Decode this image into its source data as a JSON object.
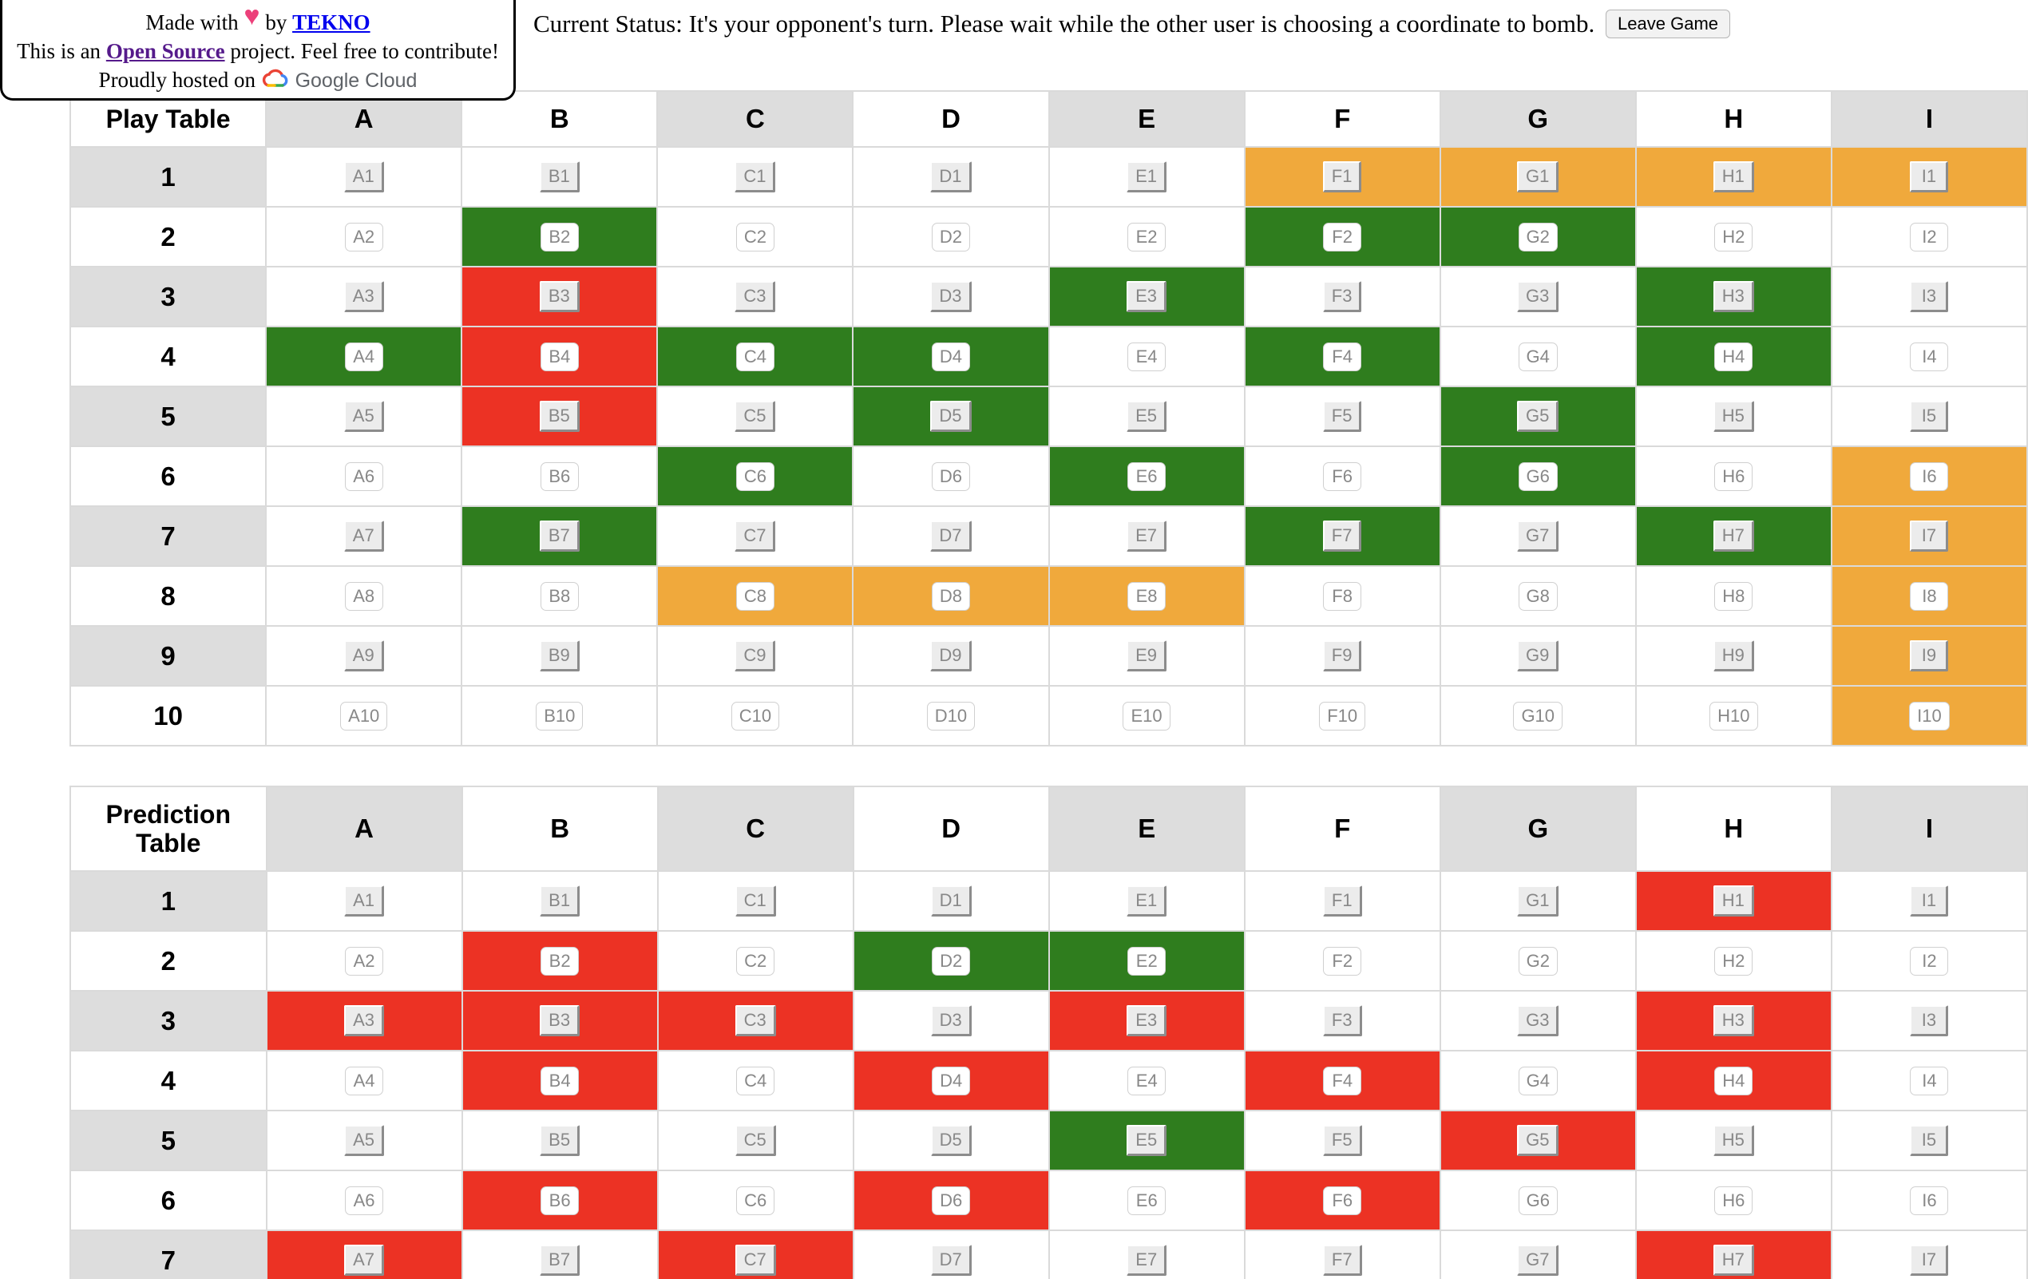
{
  "credits": {
    "made_with": "Made with",
    "by": "by",
    "author": "TEKNO",
    "line2_prefix": "This is an",
    "open_source": "Open Source",
    "line2_suffix": "project. Feel free to contribute!",
    "hosted_prefix": "Proudly hosted on",
    "host_name": "Google Cloud"
  },
  "status": {
    "text": "Current Status: It's your opponent's turn. Please wait while the other user is choosing a coordinate to bomb.",
    "leave_label": "Leave Game"
  },
  "colors": {
    "green": "#2f7d1e",
    "red": "#ec3224",
    "orange": "#f0a93c",
    "header_gray": "#dddddd"
  },
  "columns": [
    "A",
    "B",
    "C",
    "D",
    "E",
    "F",
    "G",
    "H",
    "I"
  ],
  "play_table": {
    "title": "Play Table",
    "rows": [
      "1",
      "2",
      "3",
      "4",
      "5",
      "6",
      "7",
      "8",
      "9",
      "10"
    ],
    "colors": [
      "wwwwwoooo",
      "wgwwwggww",
      "wrwwgwwgw",
      "grggwgwgw",
      "wrwgwwgww",
      "wwgwgwgwo",
      "wgwwwgwgo",
      "wwooowwwo",
      "wwwwwwwwo",
      "wwwwwwwwo"
    ]
  },
  "prediction_table": {
    "title": "Prediction Table",
    "rows": [
      "1",
      "2",
      "3",
      "4",
      "5",
      "6",
      "7"
    ],
    "colors": [
      "wwwwwwwrw",
      "wrwggwwww",
      "rrrwrwwrw",
      "wrwrwrwrw",
      "wwwwgwrww",
      "wrwrwrwww",
      "rwrwwwwrw"
    ]
  }
}
